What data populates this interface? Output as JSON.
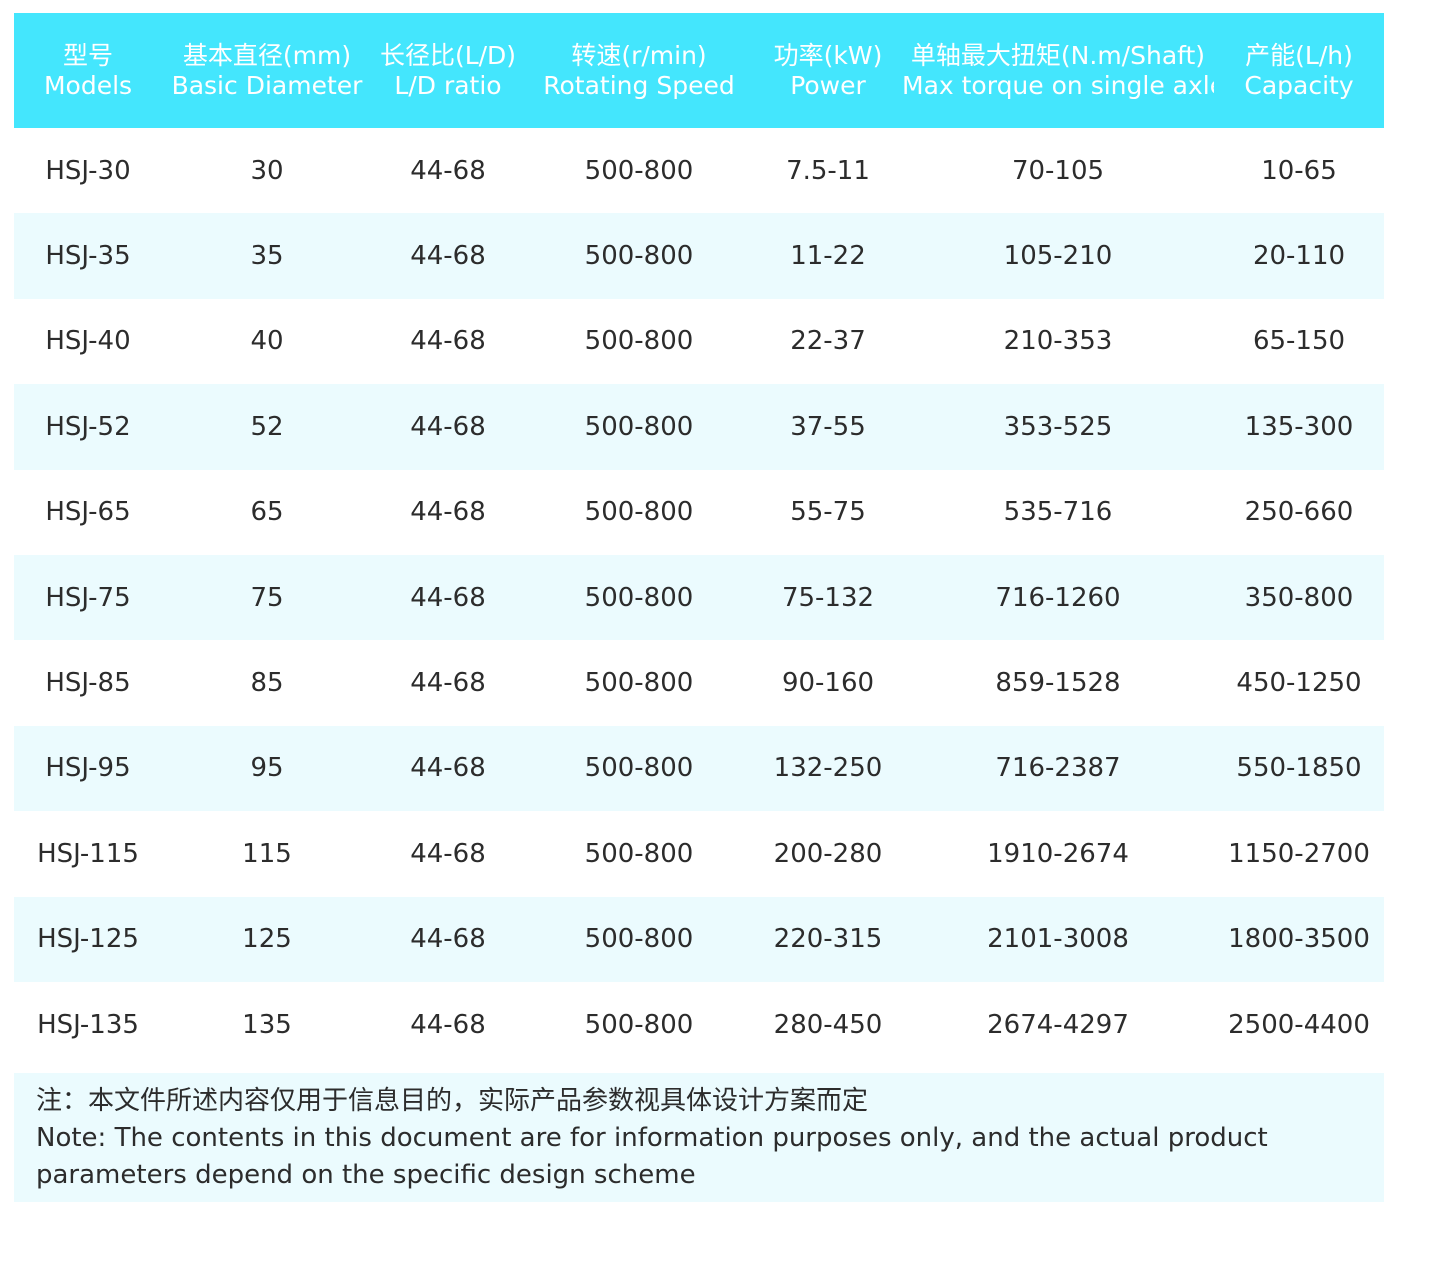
{
  "table": {
    "columns": [
      {
        "zh": "型号",
        "en": "Models"
      },
      {
        "zh": "基本直径(mm)",
        "en": "Basic Diameter"
      },
      {
        "zh": "长径比(L/D)",
        "en": "L/D ratio"
      },
      {
        "zh": "转速(r/min)",
        "en": "Rotating Speed"
      },
      {
        "zh": "功率(kW)",
        "en": "Power"
      },
      {
        "zh": "单轴最大扭矩(N.m/Shaft)",
        "en": "Max torque on single axle"
      },
      {
        "zh": "产能(L/h)",
        "en": "Capacity"
      }
    ],
    "rows": [
      [
        "HSJ-30",
        "30",
        "44-68",
        "500-800",
        "7.5-11",
        "70-105",
        "10-65"
      ],
      [
        "HSJ-35",
        "35",
        "44-68",
        "500-800",
        "11-22",
        "105-210",
        "20-110"
      ],
      [
        "HSJ-40",
        "40",
        "44-68",
        "500-800",
        "22-37",
        "210-353",
        "65-150"
      ],
      [
        "HSJ-52",
        "52",
        "44-68",
        "500-800",
        "37-55",
        "353-525",
        "135-300"
      ],
      [
        "HSJ-65",
        "65",
        "44-68",
        "500-800",
        "55-75",
        "535-716",
        "250-660"
      ],
      [
        "HSJ-75",
        "75",
        "44-68",
        "500-800",
        "75-132",
        "716-1260",
        "350-800"
      ],
      [
        "HSJ-85",
        "85",
        "44-68",
        "500-800",
        "90-160",
        "859-1528",
        "450-1250"
      ],
      [
        "HSJ-95",
        "95",
        "44-68",
        "500-800",
        "132-250",
        "716-2387",
        "550-1850"
      ],
      [
        "HSJ-115",
        "115",
        "44-68",
        "500-800",
        "200-280",
        "1910-2674",
        "1150-2700"
      ],
      [
        "HSJ-125",
        "125",
        "44-68",
        "500-800",
        "220-315",
        "2101-3008",
        "1800-3500"
      ],
      [
        "HSJ-135",
        "135",
        "44-68",
        "500-800",
        "280-450",
        "2674-4297",
        "2500-4400"
      ]
    ]
  },
  "note": {
    "zh": "注：本文件所述内容仅用于信息目的，实际产品参数视具体设计方案而定",
    "en": "Note: The contents in this document are for information purposes only, and the actual product parameters depend on the specific design scheme"
  },
  "colors": {
    "header_bg": "#44e6fd",
    "header_text": "#ffffff",
    "stripe_bg": "#ebfbfe",
    "body_text": "#2c2c2c"
  }
}
